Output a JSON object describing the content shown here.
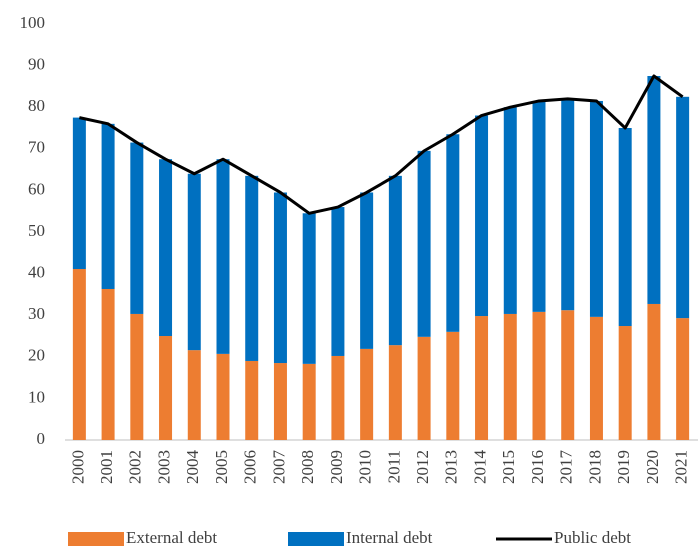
{
  "chart_data": {
    "type": "bar",
    "categories": [
      "2000",
      "2001",
      "2002",
      "2003",
      "2004",
      "2005",
      "2006",
      "2007",
      "2008",
      "2009",
      "2010",
      "2011",
      "2012",
      "2013",
      "2014",
      "2015",
      "2016",
      "2017",
      "2018",
      "2019",
      "2020",
      "2021"
    ],
    "series": [
      {
        "name": "External debt",
        "color": "#ed7d31",
        "values": [
          41.1,
          36.3,
          30.3,
          25,
          21.6,
          20.7,
          19,
          18.5,
          18.3,
          20.2,
          21.9,
          22.8,
          24.8,
          26,
          29.8,
          30.3,
          30.8,
          31.2,
          29.6,
          27.4,
          32.7,
          29.3
        ]
      },
      {
        "name": "Internal debt",
        "color": "#0070c0",
        "values": [
          36.4,
          39.7,
          41.2,
          42.5,
          42.4,
          46.8,
          44.5,
          41,
          36.2,
          35.8,
          37.6,
          40.7,
          44.7,
          47.5,
          48.2,
          49.7,
          50.7,
          50.8,
          51.9,
          47.6,
          54.8,
          53.2
        ]
      },
      {
        "name": "Public debt",
        "color": "#000000",
        "type": "line",
        "values": [
          77.5,
          76,
          71.5,
          67.5,
          64,
          67.5,
          63.5,
          59.5,
          54.5,
          56,
          59.5,
          63.5,
          69.5,
          73.5,
          78,
          80,
          81.5,
          82,
          81.5,
          75,
          87.5,
          82.5
        ]
      }
    ],
    "ylim": [
      0,
      100
    ],
    "yticks": [
      0,
      10,
      20,
      30,
      40,
      50,
      60,
      70,
      80,
      90,
      100
    ],
    "grid": false
  }
}
